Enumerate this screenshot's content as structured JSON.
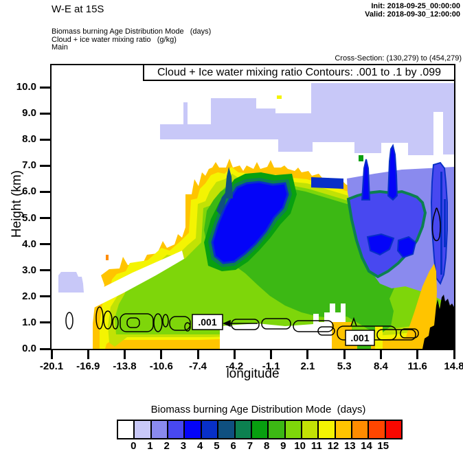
{
  "header": {
    "title": "W-E at 15S",
    "init": "Init: 2018-09-25_00:00:00",
    "valid": "Valid: 2018-09-30_12:00:00",
    "field_lines": [
      "Biomass burning Age Distribution Mode   (days)",
      "Cloud + ice water mixing ratio   (g/kg)",
      "Main"
    ],
    "cross_section": "Cross-Section: (130,279) to (454,279)"
  },
  "plot": {
    "contour_title": "Cloud + Ice water mixing ratio Contours: .001 to .1 by .099",
    "xlabel": "longitude",
    "ylabel": "Height (km)",
    "x_ticks": [
      "-20.1",
      "-16.9",
      "-13.8",
      "-10.6",
      "-7.4",
      "-4.2",
      "-1.1",
      "2.1",
      "5.3",
      "8.4",
      "11.6",
      "14.8"
    ],
    "y_ticks": [
      "0.0",
      "1.0",
      "2.0",
      "3.0",
      "4.0",
      "5.0",
      "6.0",
      "7.0",
      "8.0",
      "9.0",
      "10.0"
    ],
    "contour_labels": [
      ".001",
      ".001"
    ]
  },
  "legend": {
    "title": "Biomass burning Age Distribution Mode  (days)",
    "labels": [
      "0",
      "1",
      "2",
      "3",
      "4",
      "5",
      "6",
      "7",
      "8",
      "9",
      "10",
      "11",
      "12",
      "13",
      "14",
      "15"
    ],
    "colors": [
      "#ffffff",
      "#c8c8f8",
      "#8a8aee",
      "#4848f0",
      "#0404f8",
      "#0830c8",
      "#0f5080",
      "#0c8050",
      "#08a010",
      "#3cb814",
      "#7ed60a",
      "#c2e205",
      "#f4f402",
      "#ffc400",
      "#ff8c00",
      "#ff4600",
      "#f80800"
    ]
  },
  "chart_data": {
    "type": "heatmap",
    "title": "W-E at 15S",
    "shaded_field": "Biomass burning Age Distribution Mode (days)",
    "contoured_field": "Cloud + ice water mixing ratio (g/kg)",
    "model_level": "Main",
    "cross_section_gridpoints": "(130,279) to (454,279)",
    "xlabel": "longitude",
    "ylabel": "Height (km)",
    "xlim": [
      -20.1,
      14.8
    ],
    "ylim": [
      0,
      10.8
    ],
    "x_ticks": [
      -20.1,
      -16.9,
      -13.8,
      -10.6,
      -7.4,
      -4.2,
      -1.1,
      2.1,
      5.3,
      8.4,
      11.6,
      14.8
    ],
    "y_ticks": [
      0,
      1,
      2,
      3,
      4,
      5,
      6,
      7,
      8,
      9,
      10
    ],
    "contour_levels_gkg": [
      0.001,
      0.1
    ],
    "contour_interval_gkg": 0.099,
    "legend_bins_days": [
      0,
      1,
      2,
      3,
      4,
      5,
      6,
      7,
      8,
      9,
      10,
      11,
      12,
      13,
      14,
      15
    ],
    "regions": [
      {
        "age_days": 1,
        "desc": "thin elevated layer near 7.5-9.7 km spanning lon -8 to 14.8, plus small patch near lon -19.5 at 2.2-2.9 km"
      },
      {
        "age_days": "2-3",
        "desc": "large aged plume 2-7 km between lon 2 and 14.8 (periwinkle/blue-violet)"
      },
      {
        "age_days": "4-6",
        "desc": "blue core 4.5-6.5 km near lon -4 to -1 with dark-blue/teal fringe; narrow spike to ~7.7 km near lon 9"
      },
      {
        "age_days": "7-11",
        "desc": "broad green mass 1-6.5 km from lon -14 to 10"
      },
      {
        "age_days": "12-13",
        "desc": "yellow/gold envelope along plume edges and boundary-layer band below ~1.5 km from lon -16.9 to 14"
      },
      {
        "age_days": "terrain",
        "desc": "black terrain mask below ~1.5 km near lon 13 to 14.8"
      }
    ],
    "contour_annotations": [
      {
        "label": ".001",
        "approx_lon": -7.5,
        "approx_km": 0.9
      },
      {
        "label": ".001",
        "approx_lon": 5.6,
        "approx_km": 0.4
      }
    ]
  }
}
